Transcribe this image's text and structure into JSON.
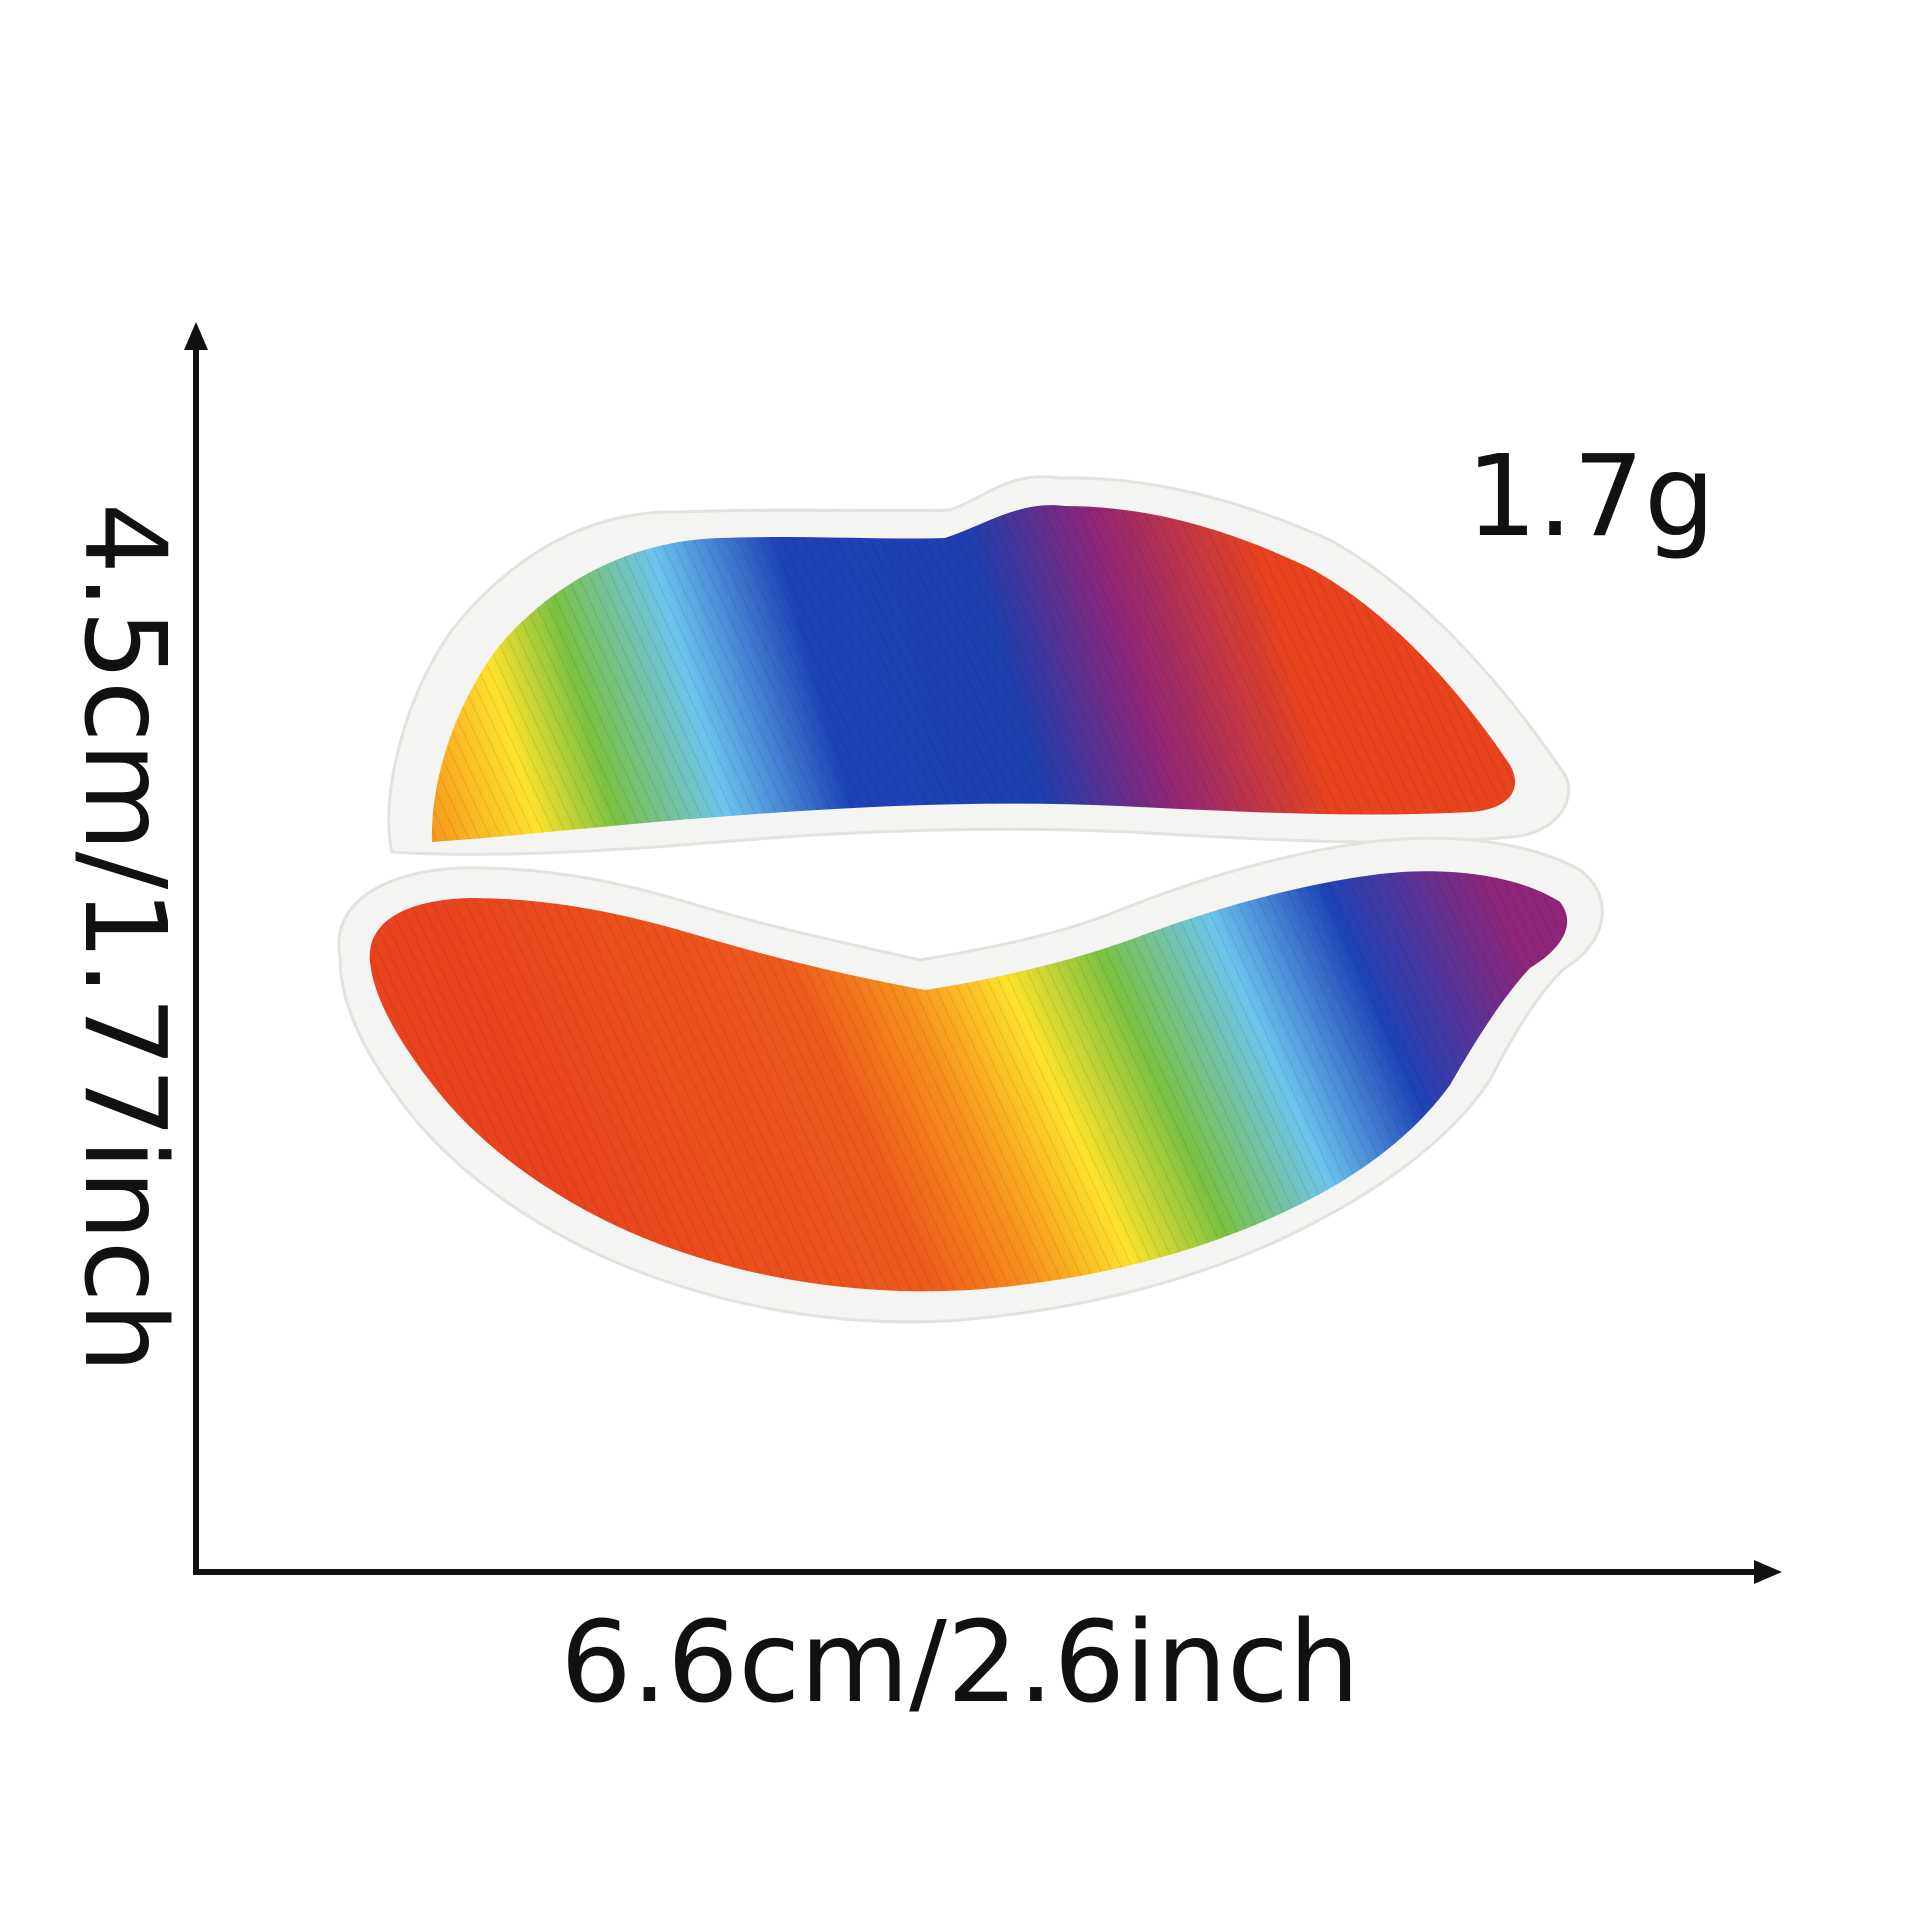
{
  "measurements": {
    "width": "6.6cm/2.6inch",
    "height": "4.5cm/1.77inch",
    "weight": "1.7g"
  },
  "product": {
    "subject": "rainbow-lips-embroidered-patch",
    "stripe_colors": [
      "#e8431e",
      "#f7921d",
      "#fde22b",
      "#7cc242",
      "#6cc3ee",
      "#1e43b8",
      "#8e2578",
      "#e8431e"
    ],
    "border_color": "#f4f4f2"
  },
  "colors": {
    "ink": "#111111",
    "background": "#ffffff"
  }
}
